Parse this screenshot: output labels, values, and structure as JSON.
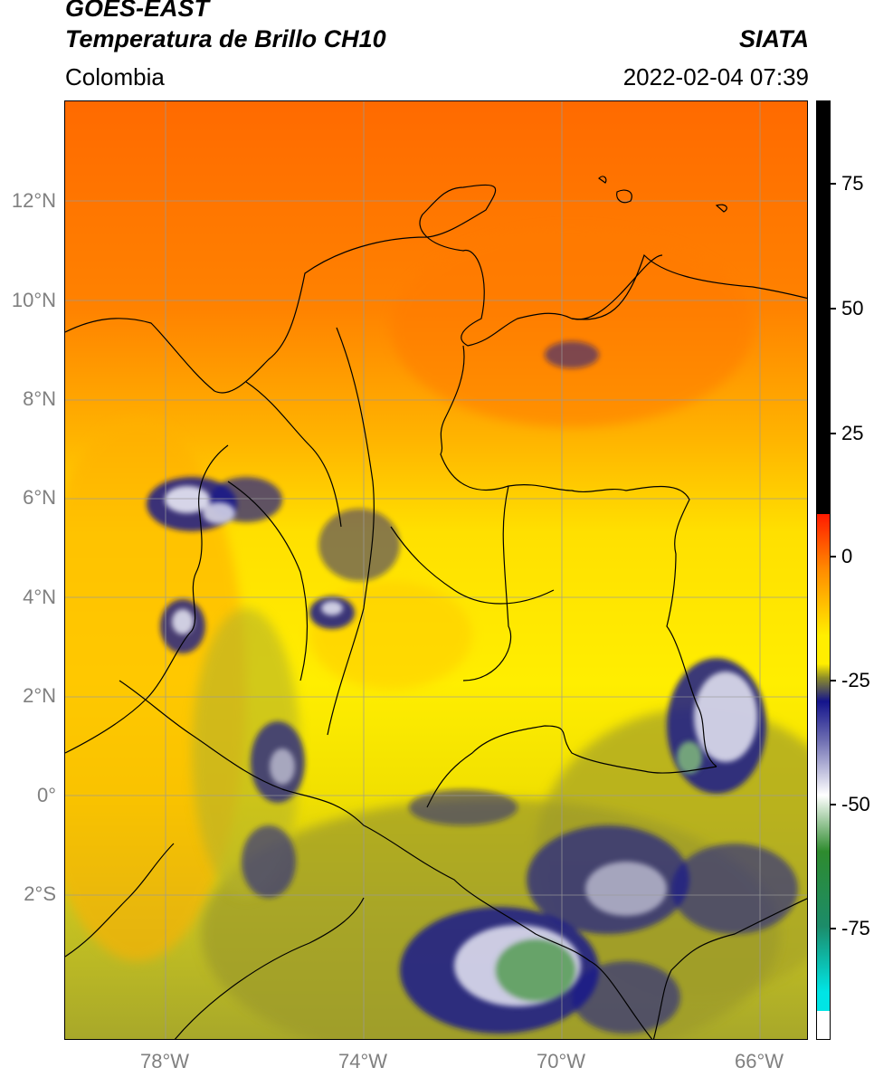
{
  "header": {
    "title_line1": "GOES-EAST",
    "title_line2": "Temperatura de Brillo CH10",
    "region": "Colombia",
    "source": "SIATA",
    "timestamp": "2022-02-04 07:39"
  },
  "map": {
    "lat_labels": [
      "12°N",
      "10°N",
      "8°N",
      "6°N",
      "4°N",
      "2°N",
      "0°",
      "2°S"
    ],
    "lon_labels": [
      "78°W",
      "74°W",
      "70°W",
      "66°W"
    ],
    "lon_range": [
      -80,
      -65
    ],
    "lat_range": [
      -5,
      14
    ]
  },
  "colorbar": {
    "labels": [
      "75",
      "50",
      "25",
      "0",
      "-25",
      "-50",
      "-75"
    ],
    "colors": {
      "black": "#000000",
      "red": "#ff1a00",
      "orange": "#ff8c00",
      "yellow": "#ffee00",
      "olive": "#8c8c2a",
      "navy": "#14148c",
      "white": "#ffffff",
      "green": "#2e8b2e",
      "cyan": "#00e5e5"
    }
  }
}
